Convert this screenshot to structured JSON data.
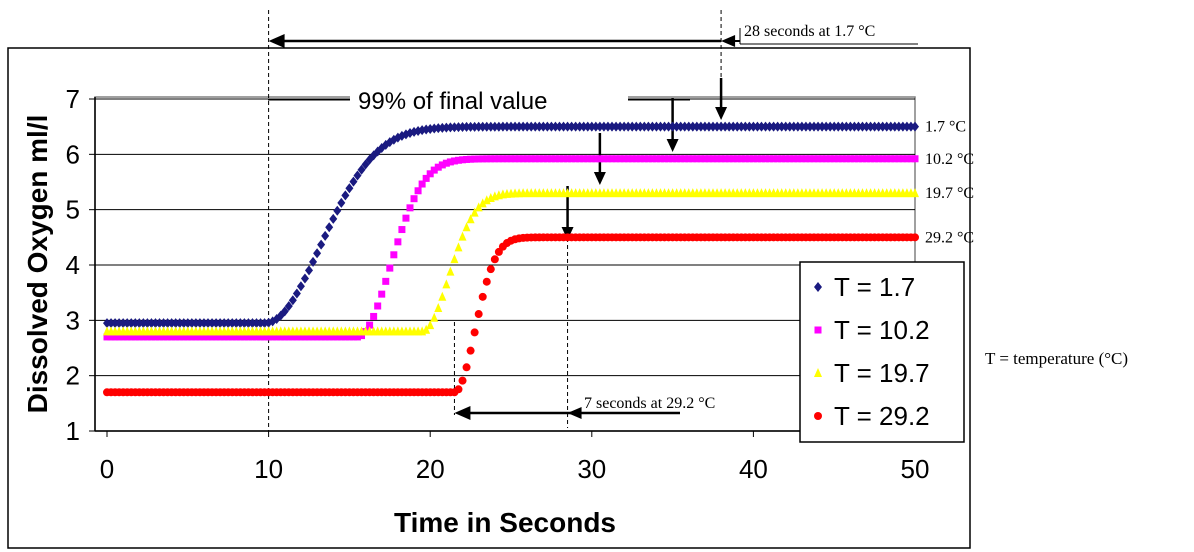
{
  "chart_data": {
    "type": "scatter",
    "title": "",
    "xlabel": "Time in Seconds",
    "ylabel": "Dissolved Oxygen ml/l",
    "xlim": [
      0,
      50
    ],
    "ylim": [
      1,
      7
    ],
    "xticks": [
      "0",
      "10",
      "20",
      "30",
      "40",
      "50"
    ],
    "yticks": [
      "1",
      "2",
      "3",
      "4",
      "5",
      "6",
      "7"
    ],
    "grid": "horizontal",
    "legend_position": "bottom-right",
    "series": [
      {
        "name": "T = 1.7",
        "color": "#1a1a80",
        "marker": "diamond",
        "end_label": "1.7 °C",
        "start": 2.95,
        "end": 6.5,
        "onset": 9.8,
        "tau": 2.7,
        "kind": "sigmoid"
      },
      {
        "name": "T = 10.2",
        "color": "#ff00ff",
        "marker": "square",
        "end_label": "10.2 °C",
        "start": 2.7,
        "end": 5.92,
        "onset": 15.5,
        "tau": 1.6,
        "kind": "sigmoid"
      },
      {
        "name": "T = 19.7",
        "color": "#ffff00",
        "marker": "triangle",
        "end_label": "19.7 °C",
        "start": 2.8,
        "end": 5.3,
        "onset": 19.5,
        "tau": 1.3,
        "kind": "sigmoid"
      },
      {
        "name": "T = 29.2",
        "color": "#ff0000",
        "marker": "circle",
        "end_label": "29.2 °C",
        "start": 1.7,
        "end": 4.5,
        "onset": 21.5,
        "tau": 1.0,
        "kind": "sigmoid"
      }
    ],
    "annotations": {
      "top_span": {
        "text": "28 seconds at 1.7 °C",
        "from": 10,
        "to": 38
      },
      "bottom_span": {
        "text": "7 seconds at 29.2 °C",
        "from": 21.5,
        "to": 28.5
      },
      "final_value": {
        "text": "99% of final value"
      },
      "side_note": {
        "text": "T = temperature (°C)"
      },
      "arrows_x": [
        38,
        35,
        30.5,
        28.5
      ]
    }
  }
}
